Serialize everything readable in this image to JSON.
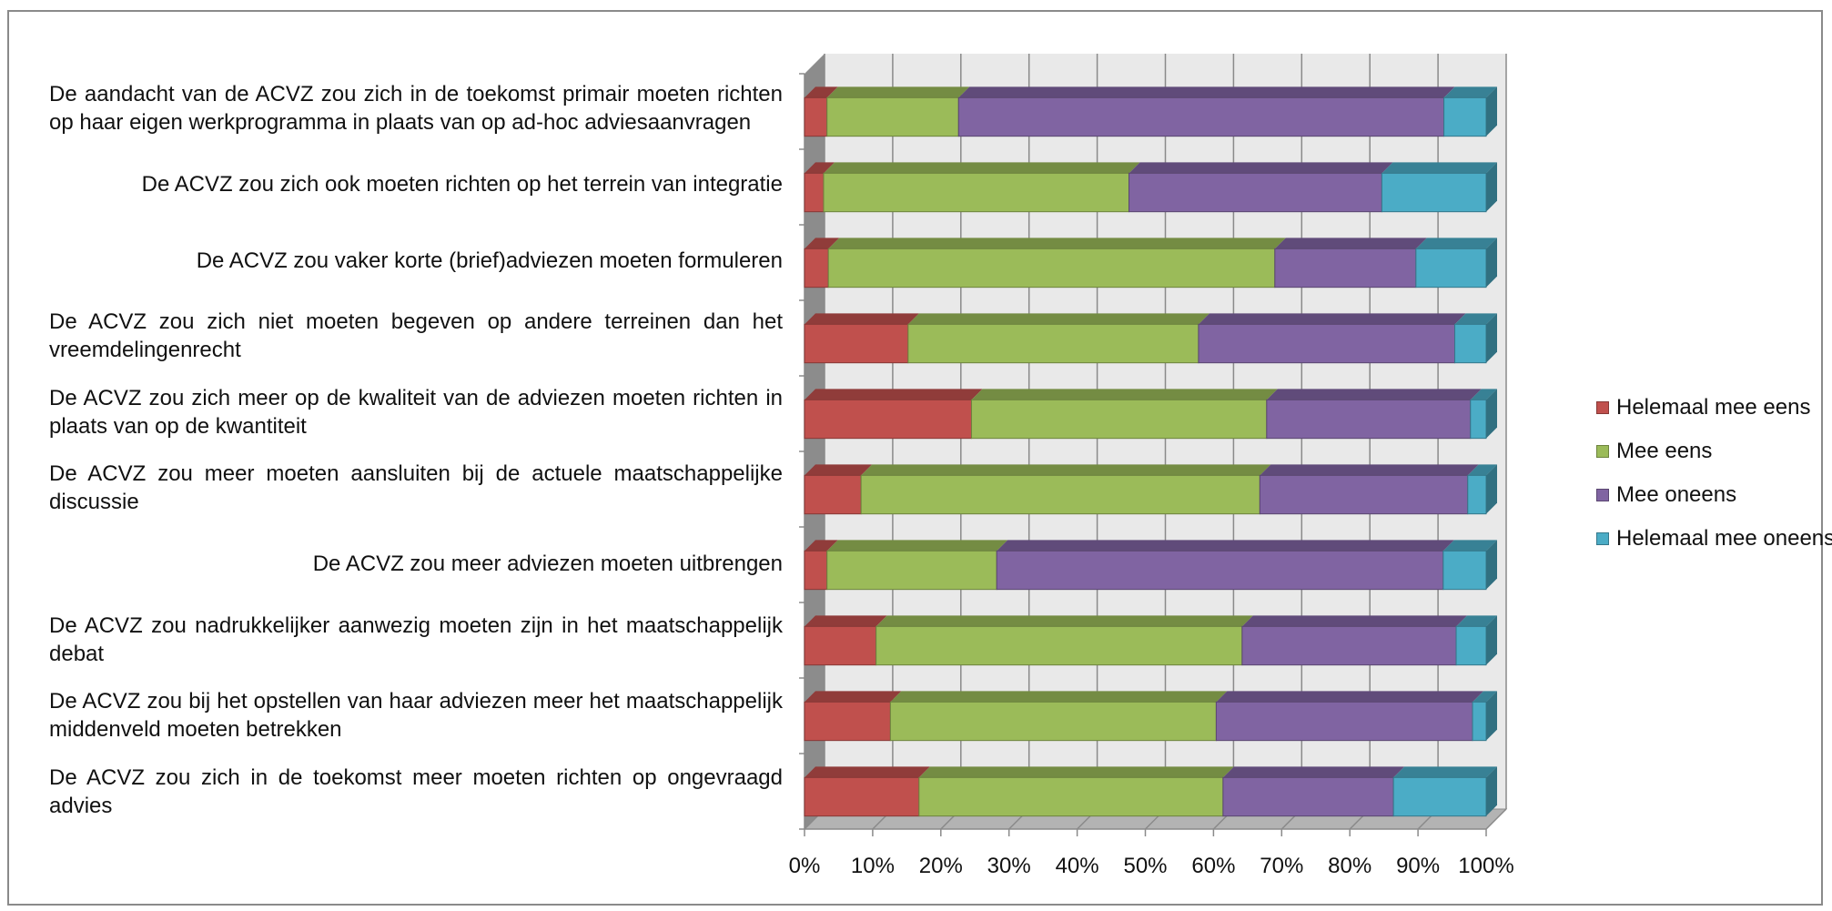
{
  "chart_data": {
    "type": "bar",
    "orientation": "horizontal",
    "stacked": "percent",
    "three_d": true,
    "title": "",
    "xlabel": "",
    "ylabel": "",
    "xlim": [
      0,
      100
    ],
    "x_ticks": [
      "0%",
      "10%",
      "20%",
      "30%",
      "40%",
      "50%",
      "60%",
      "70%",
      "80%",
      "90%",
      "100%"
    ],
    "grid": true,
    "legend_position": "right",
    "categories": [
      "De aandacht van de ACVZ zou zich in de toekomst primair moeten richten op haar eigen werkprogramma in plaats van op ad-hoc adviesaanvragen",
      "De ACVZ zou zich ook moeten richten op het terrein van integratie",
      "De ACVZ zou vaker korte (brief)adviezen moeten formuleren",
      "De ACVZ zou zich niet moeten begeven op andere terreinen dan het vreemdelingenrecht",
      "De ACVZ zou zich meer op de kwaliteit van de adviezen moeten richten in plaats van op de kwantiteit",
      "De ACVZ zou meer moeten aansluiten bij de actuele maatschappelijke discussie",
      "De ACVZ zou meer adviezen moeten uitbrengen",
      "De ACVZ zou nadrukkelijker aanwezig moeten zijn in het maatschappelijk debat",
      "De ACVZ zou bij het opstellen van haar adviezen meer het maatschappelijk middenveld moeten betrekken",
      "De ACVZ zou zich in de toekomst meer moeten richten op ongevraagd advies"
    ],
    "series": [
      {
        "name": "Helemaal mee eens",
        "color": "#c0504d",
        "values": [
          3.3,
          2.8,
          3.5,
          15.2,
          24.5,
          8.3,
          3.3,
          10.5,
          12.6,
          16.8
        ]
      },
      {
        "name": "Mee eens",
        "color": "#9bbb59",
        "values": [
          19.3,
          44.8,
          65.5,
          42.6,
          43.3,
          58.5,
          24.9,
          53.7,
          47.8,
          44.6
        ]
      },
      {
        "name": "Mee oneens",
        "color": "#8064a2",
        "values": [
          71.2,
          37.1,
          20.7,
          37.6,
          29.9,
          30.5,
          65.5,
          31.4,
          37.6,
          25.0
        ]
      },
      {
        "name": "Helemaal mee oneens",
        "color": "#4bacc6",
        "values": [
          6.2,
          15.3,
          10.3,
          4.6,
          2.3,
          2.7,
          6.3,
          4.4,
          2.0,
          13.6
        ]
      }
    ]
  }
}
